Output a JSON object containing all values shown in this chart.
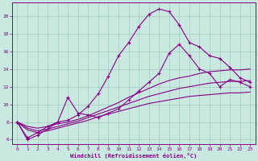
{
  "xlabel": "Windchill (Refroidissement éolien,°C)",
  "bg_color": "#c8e8e0",
  "grid_color": "#a0ccbe",
  "line_color": "#880088",
  "xlim": [
    -0.5,
    23.5
  ],
  "ylim": [
    5.5,
    21.5
  ],
  "yticks": [
    6,
    8,
    10,
    12,
    14,
    16,
    18,
    20
  ],
  "xticks": [
    0,
    1,
    2,
    3,
    4,
    5,
    6,
    7,
    8,
    9,
    10,
    11,
    12,
    13,
    14,
    15,
    16,
    17,
    18,
    19,
    20,
    21,
    22,
    23
  ],
  "curve1_x": [
    0,
    1,
    2,
    3,
    4,
    5,
    6,
    7,
    8,
    9,
    10,
    11,
    12,
    13,
    14,
    15,
    16,
    17,
    18,
    19,
    20,
    21,
    22,
    23
  ],
  "curve1_y": [
    8.0,
    6.0,
    6.5,
    7.2,
    8.0,
    8.2,
    8.8,
    9.8,
    11.2,
    13.2,
    15.5,
    17.0,
    18.8,
    20.2,
    20.8,
    20.5,
    19.0,
    17.0,
    16.5,
    15.5,
    15.2,
    14.2,
    13.0,
    12.5
  ],
  "curve2_x": [
    0,
    1,
    2,
    3,
    4,
    5,
    6,
    7,
    8,
    9,
    10,
    11,
    12,
    13,
    14,
    15,
    16,
    17,
    18,
    19,
    20,
    21,
    22,
    23
  ],
  "curve2_y": [
    8.0,
    6.2,
    6.8,
    7.5,
    8.0,
    10.8,
    9.0,
    8.8,
    8.5,
    9.0,
    9.5,
    10.5,
    11.5,
    12.5,
    13.5,
    15.8,
    16.8,
    15.5,
    14.0,
    13.5,
    12.0,
    12.8,
    12.5,
    12.0
  ],
  "smooth1_x": [
    0,
    1,
    2,
    3,
    4,
    5,
    6,
    7,
    8,
    9,
    10,
    11,
    12,
    13,
    14,
    15,
    16,
    17,
    18,
    19,
    20,
    21,
    22,
    23
  ],
  "smooth1_y": [
    8.0,
    7.5,
    7.3,
    7.5,
    7.8,
    8.0,
    8.3,
    8.7,
    9.2,
    9.7,
    10.2,
    10.8,
    11.3,
    11.8,
    12.3,
    12.7,
    13.0,
    13.2,
    13.5,
    13.7,
    13.8,
    13.9,
    13.9,
    14.0
  ],
  "smooth2_x": [
    0,
    1,
    2,
    3,
    4,
    5,
    6,
    7,
    8,
    9,
    10,
    11,
    12,
    13,
    14,
    15,
    16,
    17,
    18,
    19,
    20,
    21,
    22,
    23
  ],
  "smooth2_y": [
    8.0,
    7.3,
    7.0,
    7.2,
    7.5,
    7.8,
    8.1,
    8.5,
    8.9,
    9.3,
    9.7,
    10.1,
    10.5,
    10.9,
    11.2,
    11.5,
    11.8,
    12.0,
    12.2,
    12.4,
    12.5,
    12.6,
    12.6,
    12.7
  ],
  "smooth3_x": [
    0,
    1,
    2,
    3,
    4,
    5,
    6,
    7,
    8,
    9,
    10,
    11,
    12,
    13,
    14,
    15,
    16,
    17,
    18,
    19,
    20,
    21,
    22,
    23
  ],
  "smooth3_y": [
    8.0,
    7.1,
    6.8,
    7.0,
    7.3,
    7.6,
    7.9,
    8.2,
    8.6,
    8.9,
    9.2,
    9.5,
    9.8,
    10.1,
    10.3,
    10.5,
    10.7,
    10.9,
    11.0,
    11.1,
    11.2,
    11.3,
    11.3,
    11.4
  ]
}
